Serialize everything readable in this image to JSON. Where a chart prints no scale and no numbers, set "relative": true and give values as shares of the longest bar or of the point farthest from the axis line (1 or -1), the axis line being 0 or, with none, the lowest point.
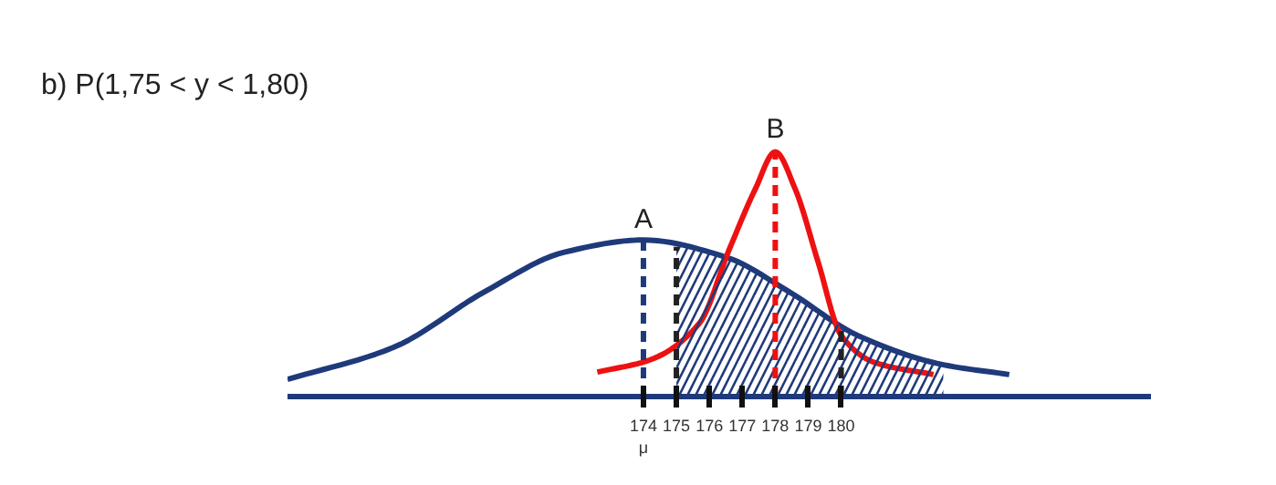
{
  "chart_data": {
    "type": "line",
    "title": "b) P(1,75 < y < 1,80)",
    "relative": true,
    "xlim": [
      163.2,
      189.4
    ],
    "xticks": [
      {
        "value": 174,
        "label": "174\nμ"
      },
      175,
      176,
      177,
      178,
      179,
      180
    ],
    "series": [
      {
        "color": "#1f3a7a",
        "x": [
          163.2,
          166.4,
          169.2,
          171.6,
          174,
          176.5,
          178.4,
          180.5,
          183.1,
          185.1
        ],
        "values": [
          0.07,
          0.2,
          0.43,
          0.59,
          0.64,
          0.57,
          0.43,
          0.25,
          0.13,
          0.09
        ]
      },
      {
        "color": "#ee1111",
        "x": [
          172.6,
          174.2,
          175.7,
          176.6,
          177.4,
          178,
          178.6,
          179.3,
          180,
          181,
          182.8
        ],
        "values": [
          0.1,
          0.15,
          0.3,
          0.6,
          0.85,
          1,
          0.85,
          0.55,
          0.25,
          0.14,
          0.09
        ]
      },
      {
        "type": "area",
        "color": "#1f3a7a",
        "x": [
          175,
          176.5,
          178.4,
          180.5,
          183.1
        ],
        "values": [
          0.62,
          0.57,
          0.43,
          0.25,
          0.13
        ]
      }
    ],
    "ref_lines": [
      {
        "axis": "x",
        "value": 174,
        "color": "#1f3a7a",
        "line_style": "dashed"
      },
      {
        "axis": "x",
        "value": 175,
        "color": "#222222",
        "line_style": "dashed"
      },
      {
        "axis": "x",
        "value": 178,
        "color": "#ee1111",
        "line_style": "dashed"
      },
      {
        "axis": "x",
        "value": 180,
        "color": "#222222",
        "line_style": "dashed"
      }
    ],
    "annotations": [
      {
        "text": "A",
        "x": 174,
        "y": 0.66
      },
      {
        "text": "B",
        "x": 178,
        "y": 1.03
      }
    ],
    "grid": false
  }
}
